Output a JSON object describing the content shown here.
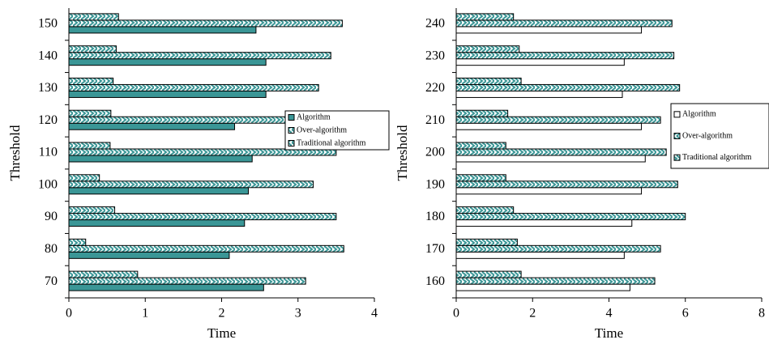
{
  "chart_data": [
    {
      "type": "hbar",
      "xlabel": "Time",
      "ylabel": "Threshold",
      "categories": [
        "70",
        "80",
        "90",
        "100",
        "110",
        "120",
        "130",
        "140",
        "150"
      ],
      "xlim": [
        0,
        4
      ],
      "xticks": [
        0,
        1,
        2,
        3,
        4
      ],
      "series": [
        {
          "name": "Algorithm",
          "color": "#3a9696",
          "hatch": false,
          "values": [
            2.55,
            2.1,
            2.3,
            2.35,
            2.4,
            2.17,
            2.58,
            2.58,
            2.45
          ]
        },
        {
          "name": "Over-algorithm",
          "color": "#3a9696",
          "hatch": true,
          "values": [
            3.1,
            3.6,
            3.5,
            3.2,
            3.5,
            3.0,
            3.27,
            3.43,
            3.58
          ]
        },
        {
          "name": "Traditional algorithm",
          "color": "#3a9696",
          "hatch": true,
          "values": [
            0.9,
            0.22,
            0.6,
            0.4,
            0.54,
            0.55,
            0.58,
            0.62,
            0.65
          ]
        }
      ]
    },
    {
      "type": "hbar",
      "xlabel": "Time",
      "ylabel": "Threshold",
      "categories": [
        "160",
        "170",
        "180",
        "190",
        "200",
        "210",
        "220",
        "230",
        "240"
      ],
      "xlim": [
        0,
        8
      ],
      "xticks": [
        0,
        2,
        4,
        6,
        8
      ],
      "series": [
        {
          "name": "Algorithm",
          "color": "#ffffff",
          "hatch": false,
          "values": [
            4.55,
            4.4,
            4.6,
            4.85,
            4.95,
            4.85,
            4.35,
            4.4,
            4.85
          ]
        },
        {
          "name": "Over-algorithm",
          "color": "#3a9696",
          "hatch": true,
          "values": [
            5.2,
            5.35,
            6.0,
            5.8,
            5.5,
            5.35,
            5.85,
            5.7,
            5.65
          ]
        },
        {
          "name": "Traditional algorithm",
          "color": "#3a9696",
          "hatch": true,
          "values": [
            1.7,
            1.6,
            1.5,
            1.3,
            1.3,
            1.35,
            1.7,
            1.65,
            1.5
          ]
        }
      ]
    }
  ]
}
